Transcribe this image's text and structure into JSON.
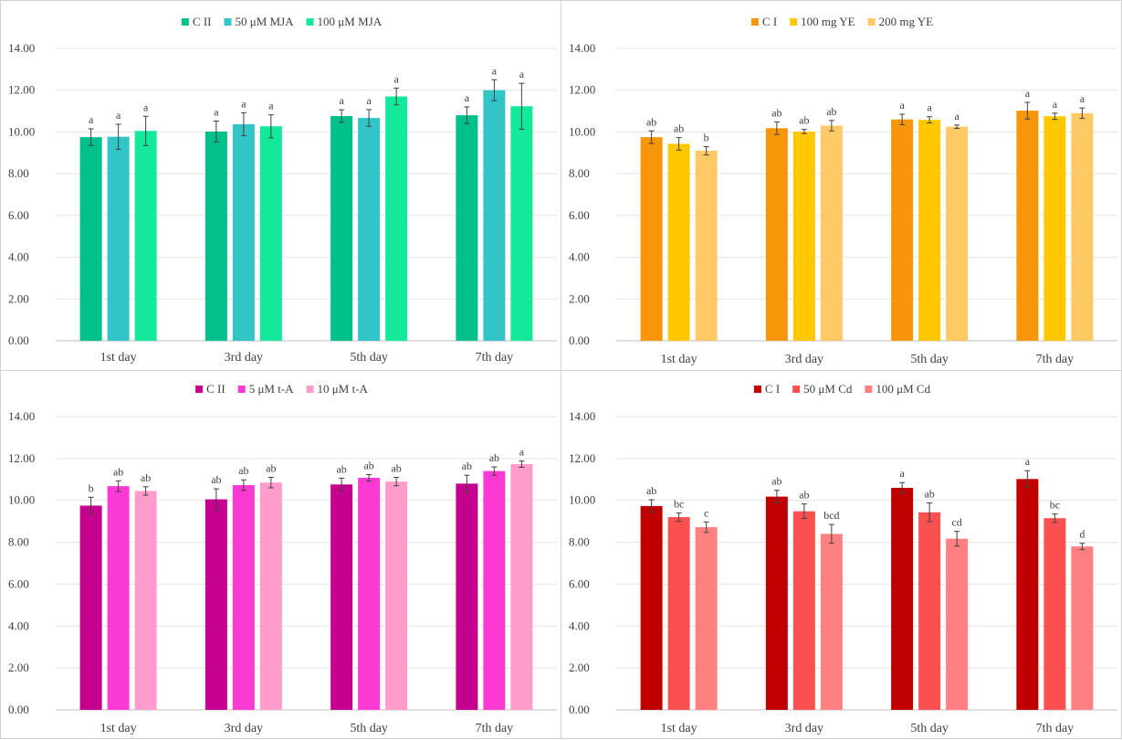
{
  "chart_data": [
    {
      "type": "bar",
      "categories": [
        "1st day",
        "3rd day",
        "5th day",
        "7th day"
      ],
      "ylim": [
        0,
        14
      ],
      "yticks": [
        "0.00",
        "2.00",
        "4.00",
        "6.00",
        "8.00",
        "10.00",
        "12.00",
        "14.00"
      ],
      "grid": true,
      "legend": "top-center",
      "series": [
        {
          "name": "C II",
          "color": "#00c08b",
          "values": [
            9.75,
            10.02,
            10.76,
            10.8
          ],
          "errors": [
            0.4,
            0.5,
            0.3,
            0.4
          ],
          "labels": [
            "a",
            "a",
            "a",
            "a"
          ]
        },
        {
          "name": "50 μM MJA",
          "color": "#33c4c8",
          "values": [
            9.77,
            10.37,
            10.67,
            12.0
          ],
          "errors": [
            0.6,
            0.55,
            0.4,
            0.5
          ],
          "labels": [
            "a",
            "a",
            "a",
            "a"
          ]
        },
        {
          "name": "100 μM MJA",
          "color": "#14e89a",
          "values": [
            10.05,
            10.27,
            11.7,
            11.23
          ],
          "errors": [
            0.7,
            0.55,
            0.4,
            1.1
          ],
          "labels": [
            "a",
            "a",
            "a",
            "a"
          ]
        }
      ]
    },
    {
      "type": "bar",
      "categories": [
        "1st day",
        "3rd day",
        "5th day",
        "7th day"
      ],
      "ylim": [
        0,
        14
      ],
      "yticks": [
        "0.00",
        "2.00",
        "4.00",
        "6.00",
        "8.00",
        "10.00",
        "12.00",
        "14.00"
      ],
      "grid": true,
      "legend": "top-center",
      "series": [
        {
          "name": "C I",
          "color": "#f7960a",
          "values": [
            9.75,
            10.18,
            10.6,
            11.02
          ],
          "errors": [
            0.3,
            0.3,
            0.25,
            0.4
          ],
          "labels": [
            "ab",
            "ab",
            "a",
            "a"
          ]
        },
        {
          "name": "100 mg YE",
          "color": "#ffc800",
          "values": [
            9.43,
            10.02,
            10.58,
            10.75
          ],
          "errors": [
            0.3,
            0.1,
            0.15,
            0.15
          ],
          "labels": [
            "ab",
            "ab",
            "a",
            "a"
          ]
        },
        {
          "name": "200 mg YE",
          "color": "#ffc966",
          "values": [
            9.1,
            10.3,
            10.25,
            10.9
          ],
          "errors": [
            0.2,
            0.25,
            0.08,
            0.25
          ],
          "labels": [
            "b",
            "ab",
            "a",
            "a"
          ]
        }
      ]
    },
    {
      "type": "bar",
      "categories": [
        "1st day",
        "3rd day",
        "5th day",
        "7th day"
      ],
      "ylim": [
        0,
        14
      ],
      "yticks": [
        "0.00",
        "2.00",
        "4.00",
        "6.00",
        "8.00",
        "10.00",
        "12.00",
        "14.00"
      ],
      "grid": true,
      "legend": "top-center",
      "series": [
        {
          "name": "C II",
          "color": "#c5008f",
          "values": [
            9.75,
            10.05,
            10.76,
            10.8
          ],
          "errors": [
            0.4,
            0.5,
            0.3,
            0.4
          ],
          "labels": [
            "b",
            "ab",
            "ab",
            "ab"
          ]
        },
        {
          "name": "5 μM t-A",
          "color": "#fb3ad3",
          "values": [
            10.68,
            10.73,
            11.08,
            11.4
          ],
          "errors": [
            0.25,
            0.25,
            0.15,
            0.2
          ],
          "labels": [
            "ab",
            "ab",
            "ab",
            "ab"
          ]
        },
        {
          "name": "10 μM t-A",
          "color": "#ff9ccb",
          "values": [
            10.45,
            10.85,
            10.9,
            11.73
          ],
          "errors": [
            0.2,
            0.25,
            0.2,
            0.15
          ],
          "labels": [
            "ab",
            "ab",
            "ab",
            "a"
          ]
        }
      ]
    },
    {
      "type": "bar",
      "categories": [
        "1st day",
        "3rd day",
        "5th day",
        "7th day"
      ],
      "ylim": [
        0,
        14
      ],
      "yticks": [
        "0.00",
        "2.00",
        "4.00",
        "6.00",
        "8.00",
        "10.00",
        "12.00",
        "14.00"
      ],
      "grid": true,
      "legend": "top-center",
      "series": [
        {
          "name": "C I",
          "color": "#c00000",
          "values": [
            9.73,
            10.18,
            10.6,
            11.02
          ],
          "errors": [
            0.3,
            0.3,
            0.25,
            0.4
          ],
          "labels": [
            "ab",
            "ab",
            "a",
            "a"
          ]
        },
        {
          "name": "50 μM Cd",
          "color": "#fb5050",
          "values": [
            9.2,
            9.48,
            9.43,
            9.15
          ],
          "errors": [
            0.2,
            0.35,
            0.45,
            0.2
          ],
          "labels": [
            "bc",
            "ab",
            "ab",
            "bc"
          ]
        },
        {
          "name": "100 μM Cd",
          "color": "#ff8080",
          "values": [
            8.72,
            8.4,
            8.17,
            7.8
          ],
          "errors": [
            0.25,
            0.45,
            0.35,
            0.15
          ],
          "labels": [
            "c",
            "bcd",
            "cd",
            "d"
          ]
        }
      ]
    }
  ]
}
